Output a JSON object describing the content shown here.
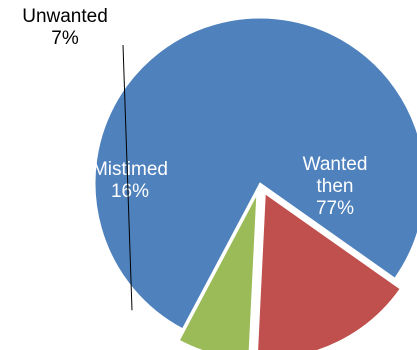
{
  "chart_data": {
    "type": "pie",
    "title": "",
    "slices": [
      {
        "label_lines": [
          "Wanted",
          "then"
        ],
        "percent_label": "77%",
        "value": 77,
        "color": "#4f81bd"
      },
      {
        "label_lines": [
          "Mistimed"
        ],
        "percent_label": "16%",
        "value": 16,
        "color": "#c0504d"
      },
      {
        "label_lines": [
          "Unwanted"
        ],
        "percent_label": "7%",
        "value": 7,
        "color": "#9bbb59"
      }
    ],
    "exploded": true,
    "legend": "none"
  }
}
